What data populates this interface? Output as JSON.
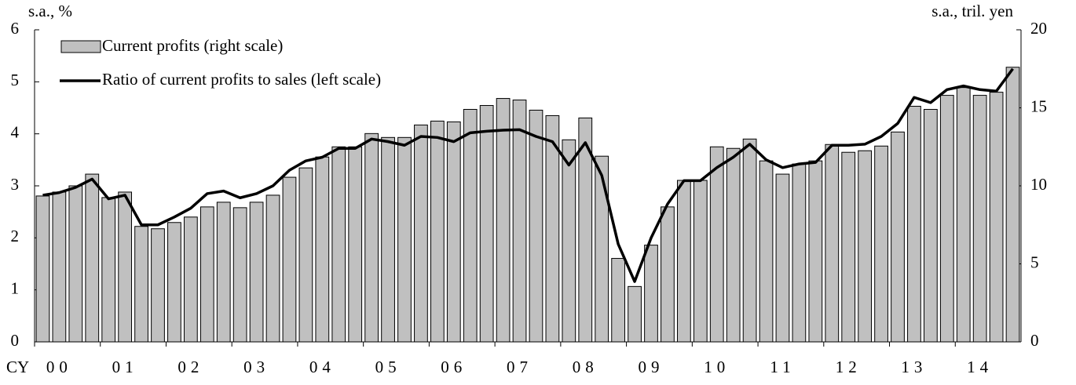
{
  "chart_data": {
    "type": "bar_line",
    "y_axis_label": "s.a., %",
    "y2_axis_label": "s.a., tril. yen",
    "x_axis_prefix": "CY",
    "categories": [
      "00",
      null,
      null,
      null,
      "01",
      null,
      null,
      null,
      "02",
      null,
      null,
      null,
      "03",
      null,
      null,
      null,
      "04",
      null,
      null,
      null,
      "05",
      null,
      null,
      null,
      "06",
      null,
      null,
      null,
      "07",
      null,
      null,
      null,
      "08",
      null,
      null,
      null,
      "09",
      null,
      null,
      null,
      "10",
      null,
      null,
      null,
      "11",
      null,
      null,
      null,
      "12",
      null,
      null,
      null,
      "13",
      null,
      null,
      null,
      "14",
      null,
      null,
      null
    ],
    "series": [
      {
        "name": "Current profits (right scale)",
        "type": "bar",
        "axis": "y2",
        "color": "#c0c0c0",
        "values": [
          9.35,
          9.6,
          10.0,
          10.75,
          9.25,
          9.6,
          7.4,
          7.25,
          7.65,
          8.0,
          8.65,
          8.95,
          8.6,
          8.95,
          9.4,
          10.55,
          11.15,
          11.85,
          12.5,
          12.5,
          13.35,
          13.1,
          13.1,
          13.9,
          14.15,
          14.1,
          14.9,
          15.15,
          15.6,
          15.5,
          14.85,
          14.5,
          12.95,
          14.35,
          11.9,
          5.35,
          3.55,
          6.2,
          8.65,
          10.35,
          10.35,
          12.5,
          12.4,
          13.0,
          11.6,
          10.75,
          11.4,
          11.6,
          12.65,
          12.15,
          12.25,
          12.55,
          13.45,
          15.1,
          14.9,
          15.8,
          16.3,
          15.8,
          16.0,
          17.6
        ]
      },
      {
        "name": "Ratio of current profits to sales (left scale)",
        "type": "line",
        "axis": "y",
        "color": "#000000",
        "values": [
          2.82,
          2.87,
          2.97,
          3.13,
          2.75,
          2.82,
          2.25,
          2.25,
          2.4,
          2.57,
          2.85,
          2.9,
          2.77,
          2.85,
          3.0,
          3.3,
          3.48,
          3.55,
          3.72,
          3.72,
          3.9,
          3.85,
          3.78,
          3.95,
          3.93,
          3.85,
          4.02,
          4.05,
          4.07,
          4.08,
          3.95,
          3.85,
          3.4,
          3.83,
          3.2,
          1.88,
          1.16,
          2.0,
          2.65,
          3.1,
          3.1,
          3.35,
          3.55,
          3.8,
          3.5,
          3.35,
          3.42,
          3.45,
          3.78,
          3.78,
          3.8,
          3.95,
          4.2,
          4.7,
          4.6,
          4.85,
          4.92,
          4.85,
          4.82,
          5.25
        ]
      }
    ],
    "ylim": [
      0,
      6
    ],
    "yticks": [
      0,
      1,
      2,
      3,
      4,
      5,
      6
    ],
    "y2lim": [
      0,
      20
    ],
    "y2ticks": [
      0,
      5,
      10,
      15,
      20
    ],
    "legend": "upper left"
  }
}
